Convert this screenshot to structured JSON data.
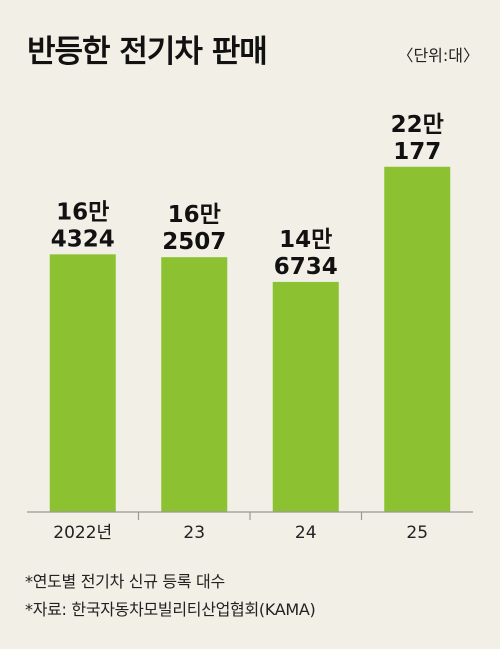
{
  "title": "반등한 전기차 판매",
  "unit_label": "〈단위:대〉",
  "notes": [
    "*연도별 전기차 신규 등록 대수",
    "*자료: 한국자동차모빌리티산업협회(KAMA)"
  ],
  "colors": {
    "background": "#f2efe6",
    "bar": "#8cc131",
    "axis": "#999999",
    "text": "#111111"
  },
  "chart_data": {
    "type": "bar",
    "title": "반등한 전기차 판매",
    "ylabel": "",
    "xlabel": "",
    "categories": [
      "2022년",
      "23",
      "24",
      "25"
    ],
    "values": [
      164324,
      162507,
      146734,
      220177
    ],
    "data_labels": [
      [
        "16만",
        "4324"
      ],
      [
        "16만",
        "2507"
      ],
      [
        "14만",
        "6734"
      ],
      [
        "22만",
        "177"
      ]
    ],
    "ylim": [
      0,
      250000
    ],
    "grid": false,
    "legend": "none"
  }
}
